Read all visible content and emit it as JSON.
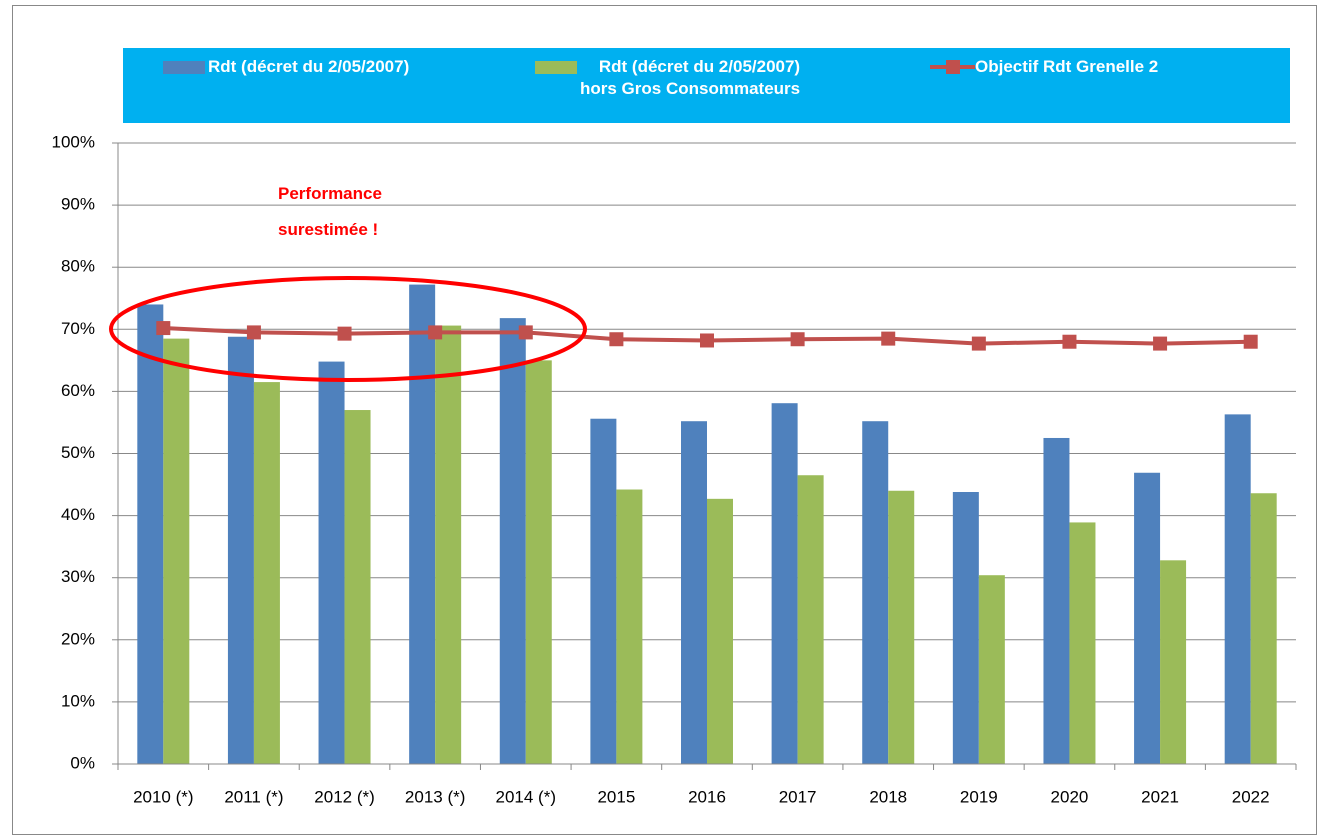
{
  "chart_data": {
    "type": "bar",
    "categories": [
      "2010 (*)",
      "2011 (*)",
      "2012 (*)",
      "2013 (*)",
      "2014 (*)",
      "2015",
      "2016",
      "2017",
      "2018",
      "2019",
      "2020",
      "2021",
      "2022"
    ],
    "series": [
      {
        "name": "Rdt (décret du 2/05/2007)",
        "color": "#4f81bd",
        "type": "bar",
        "values": [
          74.0,
          68.8,
          64.8,
          77.2,
          71.8,
          55.6,
          55.2,
          58.1,
          55.2,
          43.8,
          52.5,
          46.9,
          56.3
        ]
      },
      {
        "name": "Rdt (décret du 2/05/2007)\nhors Gros Consommateurs",
        "color": "#9bbb59",
        "type": "bar",
        "values": [
          68.5,
          61.5,
          57.0,
          70.6,
          65.0,
          44.2,
          42.7,
          46.5,
          44.0,
          30.4,
          38.9,
          32.8,
          43.6
        ]
      },
      {
        "name": "Objectif Rdt Grenelle 2",
        "color": "#c0504d",
        "type": "line",
        "values": [
          70.2,
          69.5,
          69.3,
          69.5,
          69.5,
          68.4,
          68.2,
          68.4,
          68.5,
          67.7,
          68.0,
          67.7,
          68.0
        ]
      }
    ],
    "ylim": [
      0,
      100
    ],
    "yticks": [
      {
        "value": 0,
        "label": "0%"
      },
      {
        "value": 10,
        "label": "10%"
      },
      {
        "value": 20,
        "label": "20%"
      },
      {
        "value": 30,
        "label": "30%"
      },
      {
        "value": 40,
        "label": "40%"
      },
      {
        "value": 50,
        "label": "50%"
      },
      {
        "value": 60,
        "label": "60%"
      },
      {
        "value": 70,
        "label": "70%"
      },
      {
        "value": 80,
        "label": "80%"
      },
      {
        "value": 90,
        "label": "90%"
      },
      {
        "value": 100,
        "label": "100%"
      }
    ],
    "grid": true,
    "annotation": "Performance\nsurestimée !"
  }
}
